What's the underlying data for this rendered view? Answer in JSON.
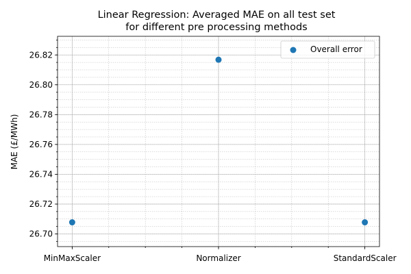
{
  "chart_data": {
    "type": "scatter",
    "title": "Linear Regression: Averaged MAE on all test set",
    "subtitle": "for different pre processing methods",
    "xlabel": "",
    "ylabel": "MAE (£/MWh)",
    "categories": [
      "MinMaxScaler",
      "Normalizer",
      "StandardScaler"
    ],
    "series": [
      {
        "name": "Overall error",
        "values": [
          26.7078,
          26.8168,
          26.7078
        ],
        "color": "#1f77b4"
      }
    ],
    "ylim": [
      26.6915,
      26.8325
    ],
    "yticks": [
      26.7,
      26.72,
      26.74,
      26.76,
      26.78,
      26.8,
      26.82
    ],
    "ytick_labels": [
      "26.70",
      "26.72",
      "26.74",
      "26.76",
      "26.78",
      "26.80",
      "26.82"
    ],
    "grid": "major and minor",
    "legend": "top-right"
  }
}
